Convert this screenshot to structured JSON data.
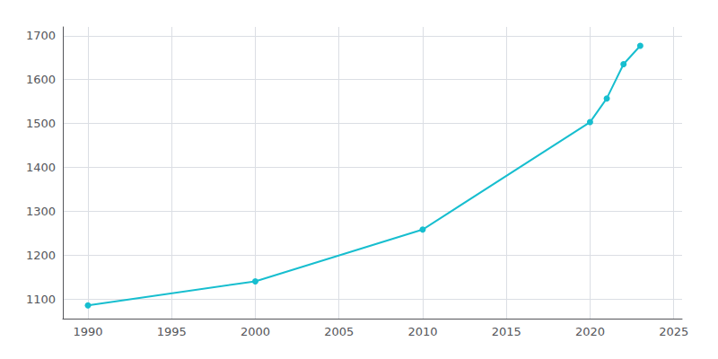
{
  "chart_data": {
    "type": "line",
    "x": [
      1990,
      2000,
      2010,
      2020,
      2021,
      2022,
      2023
    ],
    "values": [
      1085,
      1140,
      1258,
      1503,
      1557,
      1635,
      1677
    ],
    "color": "#17becf",
    "marker": "circle",
    "xlim": [
      1988.5,
      2025.5
    ],
    "ylim": [
      1055,
      1720
    ],
    "xticks": [
      1990,
      1995,
      2000,
      2005,
      2010,
      2015,
      2020,
      2025
    ],
    "yticks": [
      1100,
      1200,
      1300,
      1400,
      1500,
      1600,
      1700
    ],
    "grid": true
  }
}
